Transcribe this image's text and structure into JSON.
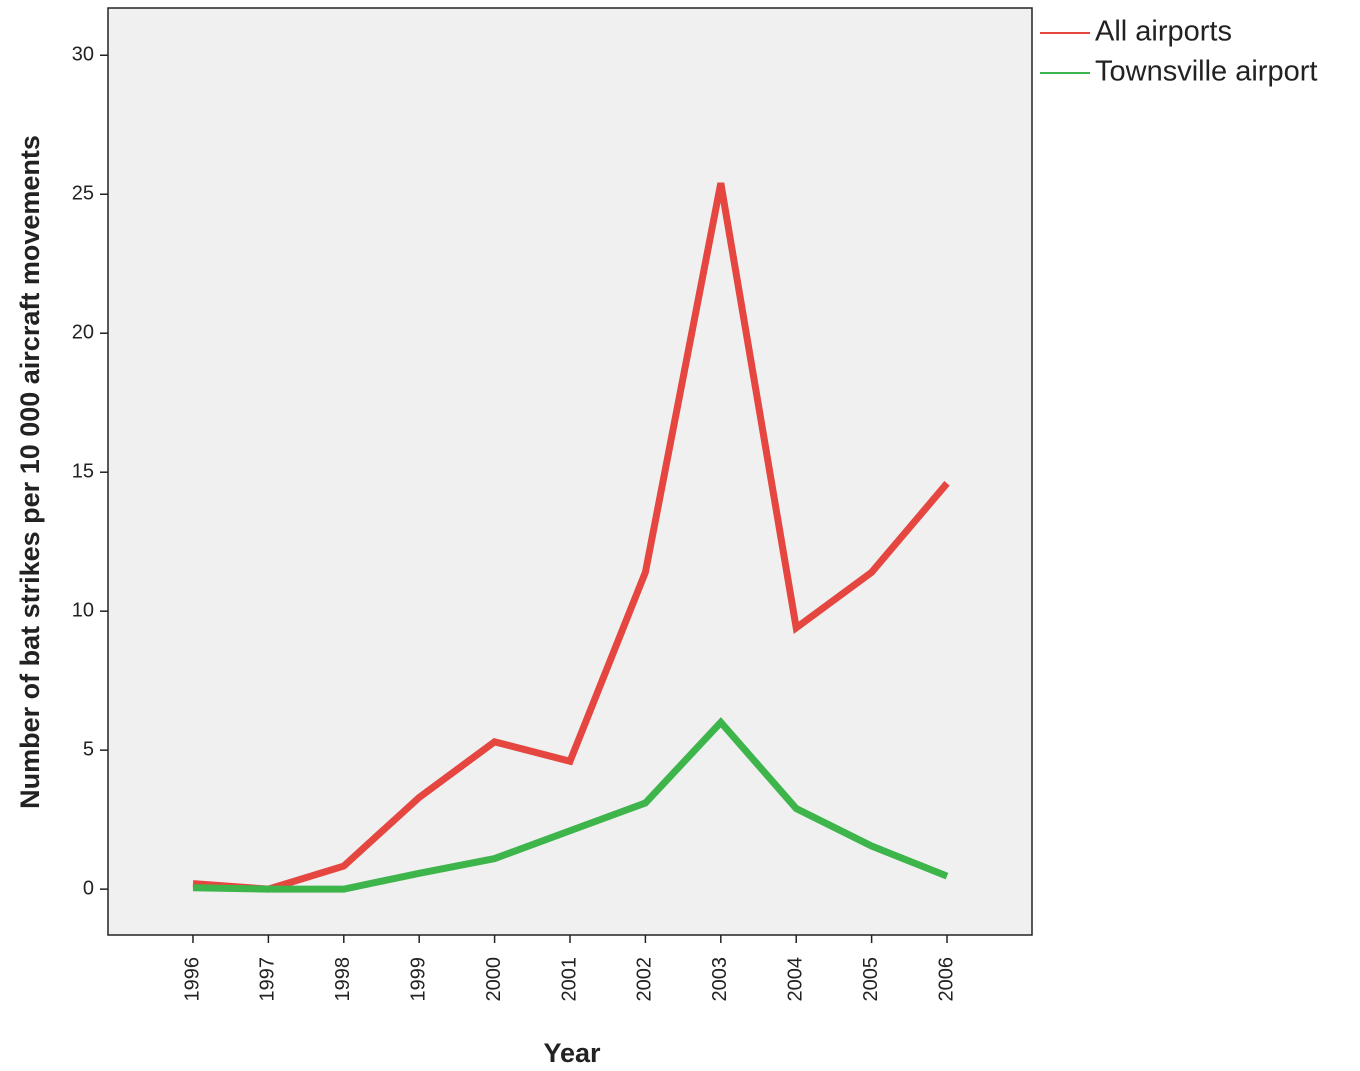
{
  "chart_data": {
    "type": "line",
    "xlabel": "Year",
    "ylabel": "Number of bat strikes per 10 000 aircraft movements",
    "categories": [
      "1996",
      "1997",
      "1998",
      "1999",
      "2000",
      "2001",
      "2002",
      "2003",
      "2004",
      "2005",
      "2006"
    ],
    "series": [
      {
        "name": "All airports",
        "color": "#e64640",
        "values": [
          0.2,
          0,
          0.83,
          3.3,
          5.3,
          4.6,
          11.4,
          25.4,
          9.4,
          11.4,
          14.6
        ]
      },
      {
        "name": "Townsville airport",
        "color": "#3db54a",
        "values": [
          0.05,
          0,
          0,
          0.57,
          1.1,
          2.1,
          3.1,
          6.0,
          2.9,
          1.55,
          0.47
        ]
      }
    ],
    "ylim": [
      -1.65,
      31.7
    ],
    "yticks": [
      0,
      5,
      10,
      15,
      20,
      25,
      30
    ],
    "legend": "outside-top-right"
  }
}
